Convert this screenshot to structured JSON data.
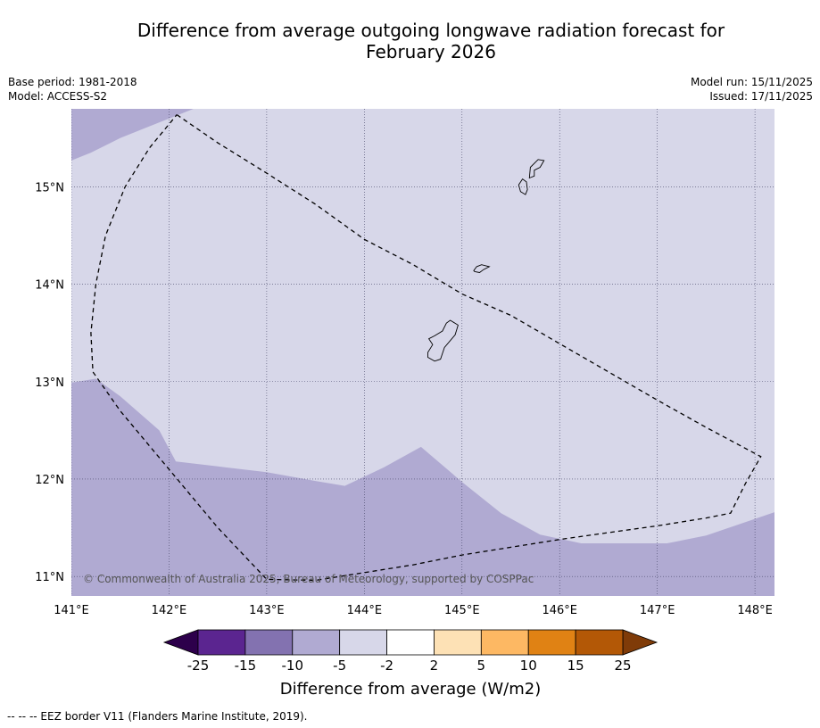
{
  "title_line1": "Difference from average outgoing longwave radiation forecast for",
  "title_line2": "February 2026",
  "meta": {
    "base_period": "Base period: 1981-2018",
    "model": "Model: ACCESS-S2",
    "model_run": "Model run: 15/11/2025",
    "issued": "Issued: 17/11/2025"
  },
  "copyright": "© Commonwealth of Australia 2025, Bureau of Meteorology, supported by COSPPac",
  "footnote": "--  --  -- EEZ border V11 (Flanders Marine Institute, 2019).",
  "colors": {
    "map_background": "#d7d7e9",
    "anomaly_region": "#b0aad2",
    "grid": "#444466",
    "eez": "#000000"
  },
  "chart_data": {
    "type": "heatmap",
    "title": "Difference from average outgoing longwave radiation forecast for February 2026",
    "x_range_deg_E": [
      141.0,
      148.2
    ],
    "y_range_deg_N": [
      10.8,
      15.8
    ],
    "x_ticks": [
      {
        "value": 141,
        "label": "141°E"
      },
      {
        "value": 142,
        "label": "142°E"
      },
      {
        "value": 143,
        "label": "143°E"
      },
      {
        "value": 144,
        "label": "144°E"
      },
      {
        "value": 145,
        "label": "145°E"
      },
      {
        "value": 146,
        "label": "146°E"
      },
      {
        "value": 147,
        "label": "147°E"
      },
      {
        "value": 148,
        "label": "148°E"
      }
    ],
    "y_ticks": [
      {
        "value": 11,
        "label": "11°N"
      },
      {
        "value": 12,
        "label": "12°N"
      },
      {
        "value": 13,
        "label": "13°N"
      },
      {
        "value": 14,
        "label": "14°N"
      },
      {
        "value": 15,
        "label": "15°N"
      }
    ],
    "grid": true,
    "base_category": "-5 to -2",
    "regions": [
      {
        "name": "north-west corner",
        "category": "-10 to -5",
        "boundary_lonlat": [
          [
            141.0,
            15.8
          ],
          [
            142.25,
            15.8
          ],
          [
            142.0,
            15.7
          ],
          [
            141.75,
            15.6
          ],
          [
            141.5,
            15.5
          ],
          [
            141.2,
            15.35
          ],
          [
            141.0,
            15.27
          ]
        ]
      },
      {
        "name": "southern band",
        "category": "-10 to -5",
        "boundary_lonlat": [
          [
            141.0,
            12.99
          ],
          [
            141.25,
            13.03
          ],
          [
            141.5,
            12.85
          ],
          [
            141.9,
            12.5
          ],
          [
            142.07,
            12.18
          ],
          [
            142.5,
            12.13
          ],
          [
            143.0,
            12.07
          ],
          [
            143.5,
            11.98
          ],
          [
            143.8,
            11.93
          ],
          [
            144.2,
            12.12
          ],
          [
            144.58,
            12.33
          ],
          [
            145.0,
            11.97
          ],
          [
            145.4,
            11.65
          ],
          [
            145.8,
            11.43
          ],
          [
            146.22,
            11.34
          ],
          [
            146.6,
            11.34
          ],
          [
            147.1,
            11.34
          ],
          [
            147.5,
            11.42
          ],
          [
            148.2,
            11.66
          ],
          [
            148.2,
            10.8
          ],
          [
            141.0,
            10.8
          ]
        ]
      }
    ],
    "eez_boundary_lonlat": [
      [
        142.08,
        15.74
      ],
      [
        142.5,
        15.45
      ],
      [
        143.0,
        15.14
      ],
      [
        143.5,
        14.82
      ],
      [
        144.0,
        14.46
      ],
      [
        144.5,
        14.2
      ],
      [
        145.0,
        13.9
      ],
      [
        145.5,
        13.68
      ],
      [
        146.0,
        13.39
      ],
      [
        146.5,
        13.1
      ],
      [
        147.0,
        12.81
      ],
      [
        147.5,
        12.53
      ],
      [
        148.06,
        12.23
      ],
      [
        147.9,
        11.95
      ],
      [
        147.75,
        11.65
      ],
      [
        147.5,
        11.6
      ],
      [
        147.0,
        11.52
      ],
      [
        146.5,
        11.45
      ],
      [
        146.0,
        11.38
      ],
      [
        145.5,
        11.3
      ],
      [
        145.0,
        11.22
      ],
      [
        144.5,
        11.12
      ],
      [
        144.0,
        11.04
      ],
      [
        143.5,
        10.96
      ],
      [
        143.0,
        10.97
      ],
      [
        142.5,
        11.5
      ],
      [
        142.0,
        12.1
      ],
      [
        141.5,
        12.7
      ],
      [
        141.22,
        13.1
      ],
      [
        141.2,
        13.5
      ],
      [
        141.25,
        14.0
      ],
      [
        141.35,
        14.5
      ],
      [
        141.55,
        15.0
      ],
      [
        141.8,
        15.4
      ],
      [
        142.08,
        15.74
      ]
    ],
    "islands_lonlat": [
      [
        [
          144.65,
          13.25
        ],
        [
          144.72,
          13.21
        ],
        [
          144.78,
          13.23
        ],
        [
          144.82,
          13.35
        ],
        [
          144.93,
          13.48
        ],
        [
          144.96,
          13.58
        ],
        [
          144.88,
          13.63
        ],
        [
          144.84,
          13.6
        ],
        [
          144.8,
          13.52
        ],
        [
          144.72,
          13.47
        ],
        [
          144.66,
          13.44
        ],
        [
          144.7,
          13.38
        ],
        [
          144.65,
          13.3
        ]
      ],
      [
        [
          145.13,
          14.13
        ],
        [
          145.18,
          14.12
        ],
        [
          145.22,
          14.15
        ],
        [
          145.28,
          14.18
        ],
        [
          145.2,
          14.2
        ],
        [
          145.15,
          14.18
        ],
        [
          145.12,
          14.14
        ]
      ],
      [
        [
          145.6,
          14.95
        ],
        [
          145.65,
          14.92
        ],
        [
          145.67,
          14.97
        ],
        [
          145.66,
          15.05
        ],
        [
          145.62,
          15.08
        ],
        [
          145.58,
          15.02
        ]
      ],
      [
        [
          145.69,
          15.09
        ],
        [
          145.74,
          15.11
        ],
        [
          145.74,
          15.17
        ],
        [
          145.8,
          15.2
        ],
        [
          145.84,
          15.27
        ],
        [
          145.78,
          15.28
        ],
        [
          145.7,
          15.2
        ]
      ]
    ],
    "colorbar": {
      "label": "Difference from average (W/m2)",
      "boundaries": [
        -25,
        -15,
        -10,
        -5,
        -2,
        2,
        5,
        10,
        15,
        25
      ],
      "tick_labels": [
        "-25",
        "-15",
        "-10",
        "-5",
        "-2",
        "2",
        "5",
        "10",
        "15",
        "25"
      ],
      "colors": [
        "#5b2590",
        "#8372b0",
        "#b0aad2",
        "#d7d7e9",
        "#ffffff",
        "#fde1b5",
        "#fdb863",
        "#e08214",
        "#b35806"
      ],
      "under_color": "#2d004b",
      "over_color": "#7f3b08"
    }
  }
}
